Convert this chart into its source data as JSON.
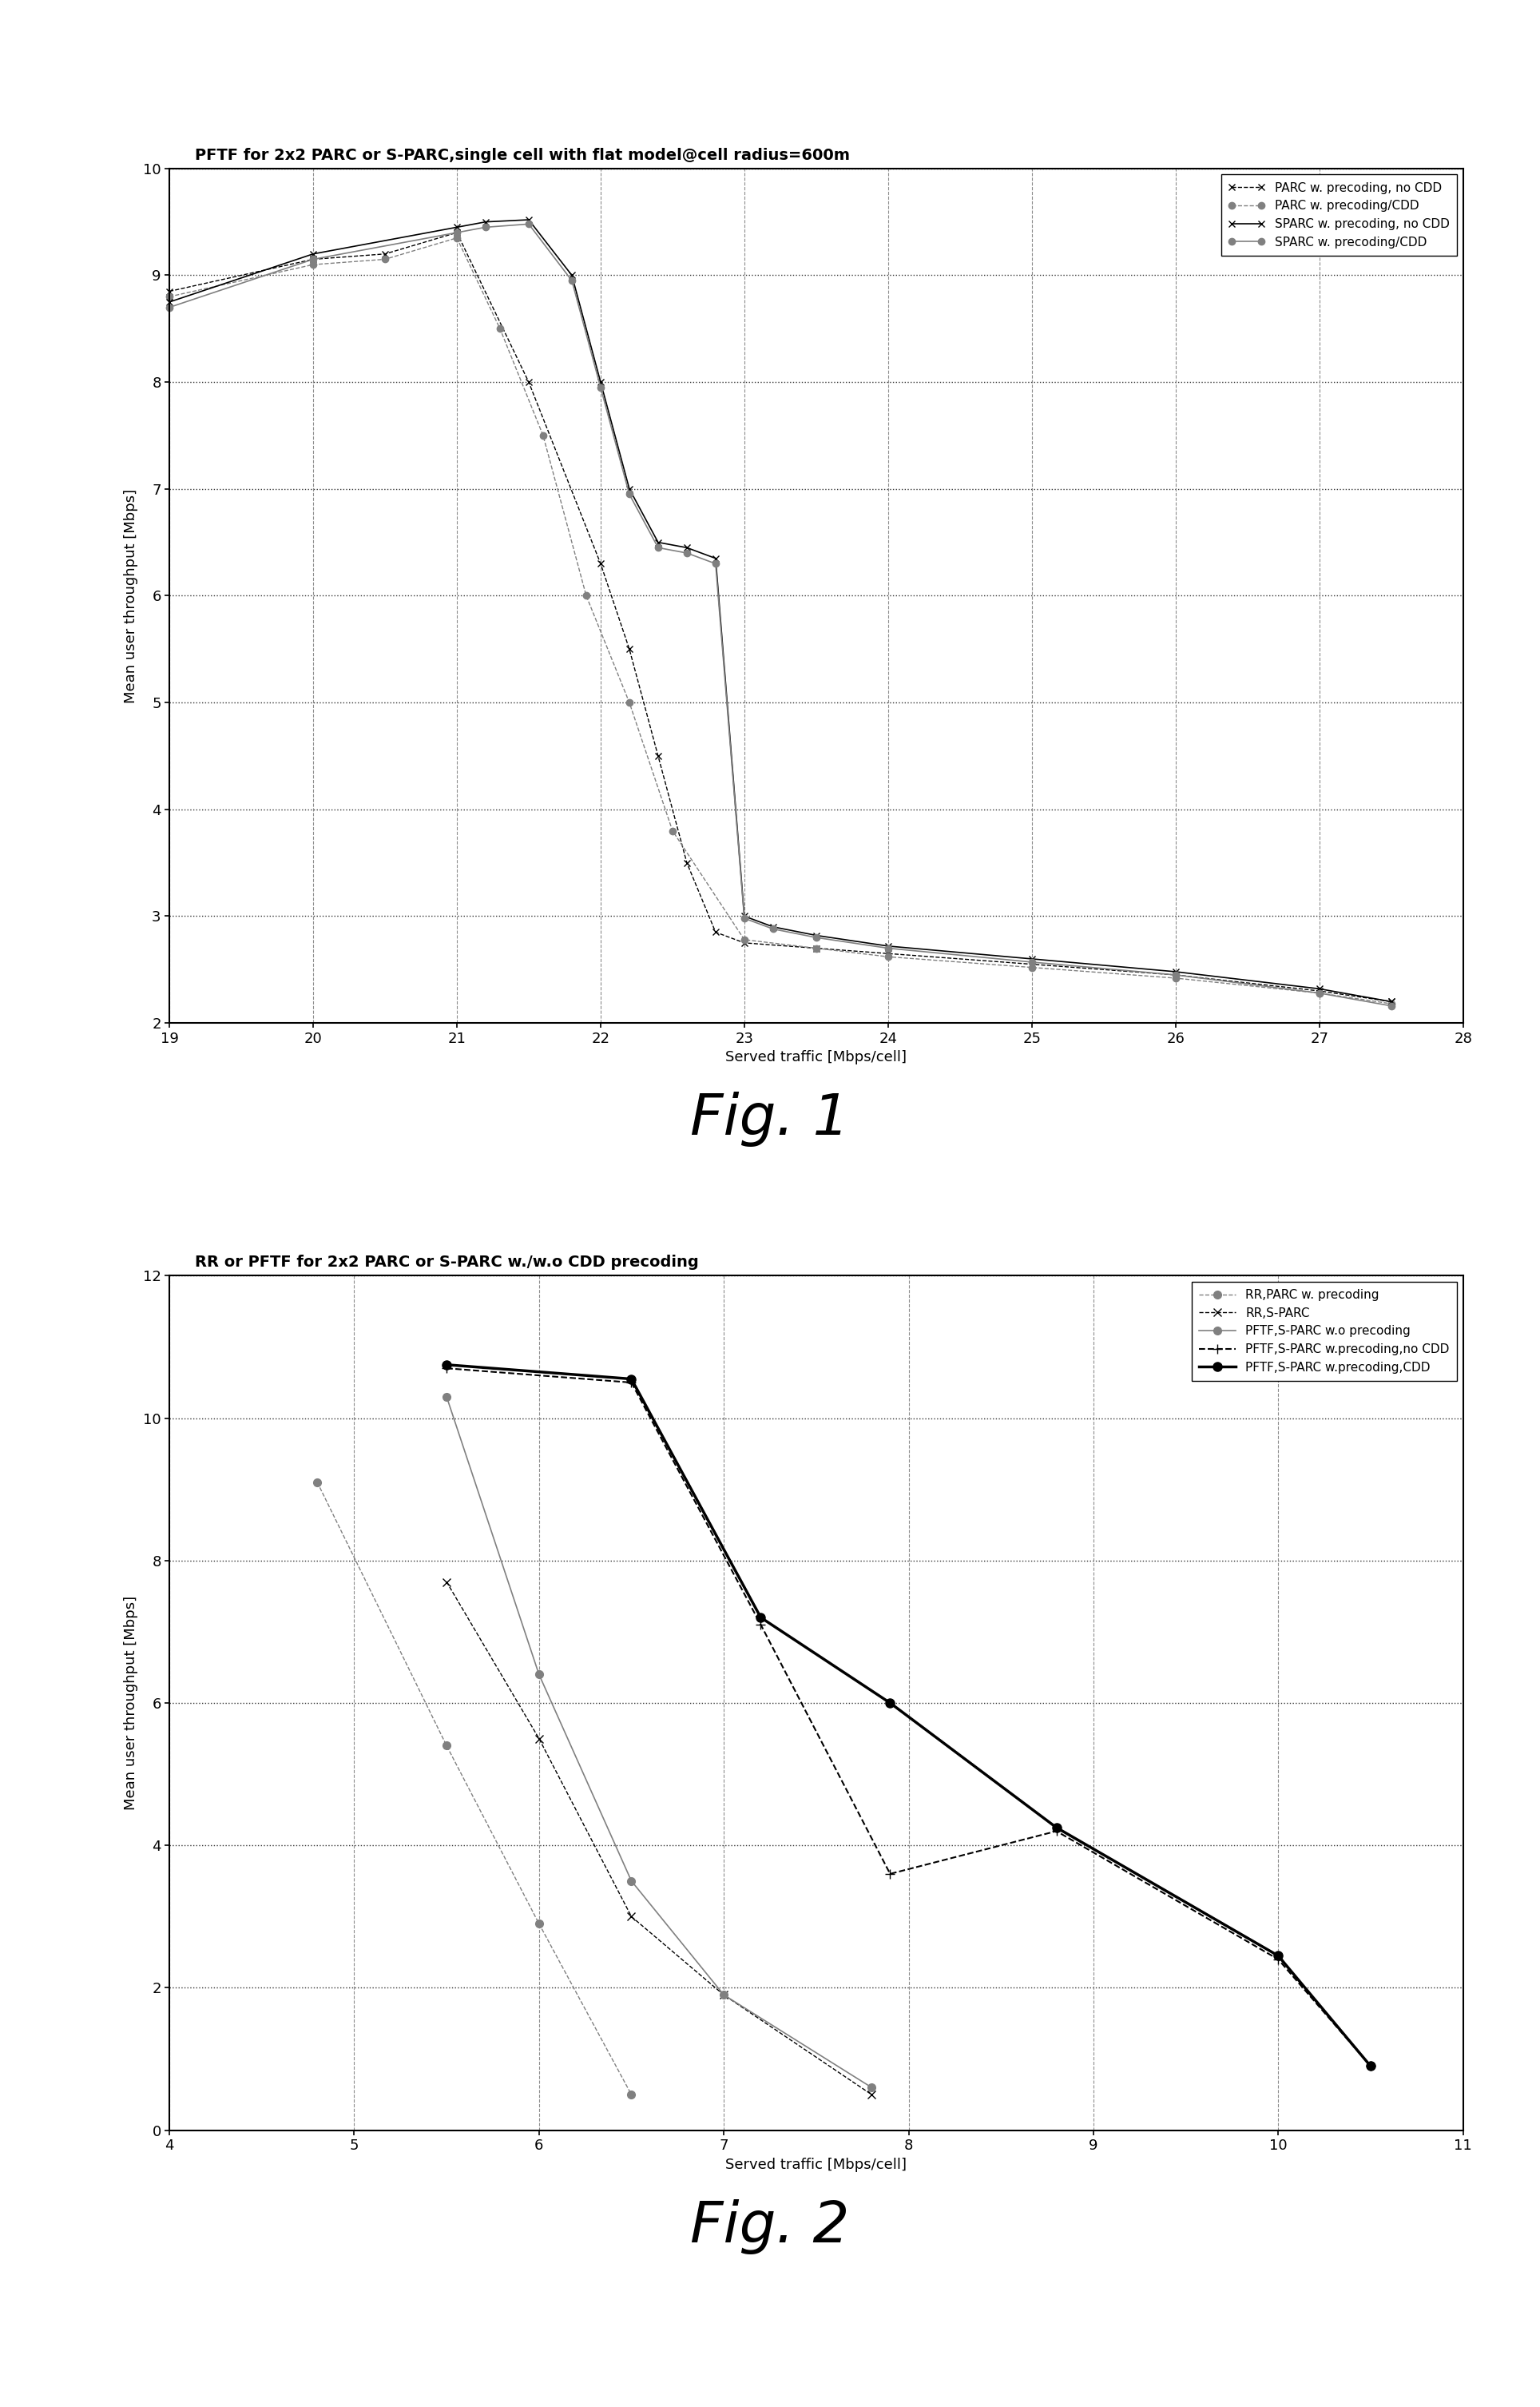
{
  "fig1": {
    "title": "PFTF for 2x2 PARC or S-PARC,single cell with flat model@cell radius=600m",
    "xlabel": "Served traffic [Mbps/cell]",
    "ylabel": "Mean user throughput [Mbps]",
    "xlim": [
      19,
      28
    ],
    "ylim": [
      2,
      10
    ],
    "xticks": [
      19,
      20,
      21,
      22,
      23,
      24,
      25,
      26,
      27,
      28
    ],
    "yticks": [
      2,
      3,
      4,
      5,
      6,
      7,
      8,
      9,
      10
    ],
    "series": [
      {
        "label": "PARC w. precoding, no CDD",
        "x": [
          19.0,
          20.0,
          20.5,
          21.0,
          21.5,
          22.0,
          22.2,
          22.4,
          22.6,
          22.8,
          23.0,
          23.5,
          24.0,
          25.0,
          26.0,
          27.0,
          27.5
        ],
        "y": [
          8.85,
          9.15,
          9.2,
          9.4,
          8.0,
          6.3,
          5.5,
          4.5,
          3.5,
          2.85,
          2.75,
          2.7,
          2.65,
          2.55,
          2.45,
          2.3,
          2.2
        ],
        "color": "black",
        "linestyle": "--",
        "marker": "x",
        "markersize": 6,
        "linewidth": 1.0
      },
      {
        "label": "PARC w. precoding/CDD",
        "x": [
          19.0,
          20.0,
          20.5,
          21.0,
          21.3,
          21.6,
          21.9,
          22.2,
          22.5,
          23.0,
          23.5,
          24.0,
          25.0,
          26.0,
          27.0,
          27.5
        ],
        "y": [
          8.8,
          9.1,
          9.15,
          9.35,
          8.5,
          7.5,
          6.0,
          5.0,
          3.8,
          2.78,
          2.7,
          2.62,
          2.52,
          2.42,
          2.28,
          2.18
        ],
        "color": "gray",
        "linestyle": "--",
        "marker": "o",
        "markersize": 6,
        "linewidth": 1.0
      },
      {
        "label": "SPARC w. precoding, no CDD",
        "x": [
          19.0,
          20.0,
          21.0,
          21.2,
          21.5,
          21.8,
          22.0,
          22.2,
          22.4,
          22.6,
          22.8,
          23.0,
          23.2,
          23.5,
          24.0,
          25.0,
          26.0,
          27.0,
          27.5
        ],
        "y": [
          8.75,
          9.2,
          9.45,
          9.5,
          9.52,
          9.0,
          8.0,
          7.0,
          6.5,
          6.45,
          6.35,
          3.0,
          2.9,
          2.82,
          2.72,
          2.6,
          2.48,
          2.32,
          2.2
        ],
        "color": "black",
        "linestyle": "-",
        "marker": "x",
        "markersize": 6,
        "linewidth": 1.2
      },
      {
        "label": "SPARC w. precoding/CDD",
        "x": [
          19.0,
          20.0,
          21.0,
          21.2,
          21.5,
          21.8,
          22.0,
          22.2,
          22.4,
          22.6,
          22.8,
          23.0,
          23.2,
          23.5,
          24.0,
          25.0,
          26.0,
          27.0,
          27.5
        ],
        "y": [
          8.7,
          9.15,
          9.4,
          9.45,
          9.48,
          8.95,
          7.95,
          6.95,
          6.45,
          6.4,
          6.3,
          2.98,
          2.88,
          2.8,
          2.7,
          2.57,
          2.45,
          2.28,
          2.16
        ],
        "color": "gray",
        "linestyle": "-",
        "marker": "o",
        "markersize": 6,
        "linewidth": 1.2
      }
    ]
  },
  "fig2": {
    "title": "RR or PFTF for 2x2 PARC or S-PARC w./w.o CDD precoding",
    "xlabel": "Served traffic [Mbps/cell]",
    "ylabel": "Mean user throughput [Mbps]",
    "xlim": [
      4,
      11
    ],
    "ylim": [
      0,
      12
    ],
    "xticks": [
      4,
      5,
      6,
      7,
      8,
      9,
      10,
      11
    ],
    "yticks": [
      0,
      2,
      4,
      6,
      8,
      10,
      12
    ],
    "series": [
      {
        "label": "RR,PARC w. precoding",
        "x": [
          4.8,
          5.5,
          6.0,
          6.5
        ],
        "y": [
          9.1,
          5.4,
          2.9,
          0.5
        ],
        "color": "gray",
        "linestyle": "--",
        "marker": "o",
        "markersize": 7,
        "linewidth": 1.0
      },
      {
        "label": "RR,S-PARC",
        "x": [
          5.5,
          6.0,
          6.5,
          7.0,
          7.8
        ],
        "y": [
          7.7,
          5.5,
          3.0,
          1.9,
          0.5
        ],
        "color": "black",
        "linestyle": "--",
        "marker": "x",
        "markersize": 7,
        "linewidth": 1.0
      },
      {
        "label": "PFTF,S-PARC w.o precoding",
        "x": [
          5.5,
          6.0,
          6.5,
          7.0,
          7.8
        ],
        "y": [
          10.3,
          6.4,
          3.5,
          1.9,
          0.6
        ],
        "color": "gray",
        "linestyle": "-",
        "marker": "o",
        "markersize": 7,
        "linewidth": 1.2
      },
      {
        "label": "PFTF,S-PARC w.precoding,no CDD",
        "x": [
          5.5,
          6.5,
          7.2,
          7.9,
          8.8,
          10.0,
          10.5
        ],
        "y": [
          10.7,
          10.5,
          7.1,
          3.6,
          4.2,
          2.4,
          0.9
        ],
        "color": "black",
        "linestyle": "--",
        "marker": "+",
        "markersize": 9,
        "linewidth": 1.5
      },
      {
        "label": "PFTF,S-PARC w.precoding,CDD",
        "x": [
          5.5,
          6.5,
          7.2,
          7.9,
          8.8,
          10.0,
          10.5
        ],
        "y": [
          10.75,
          10.55,
          7.2,
          6.0,
          4.25,
          2.45,
          0.9
        ],
        "color": "black",
        "linestyle": "-",
        "marker": "o",
        "markersize": 8,
        "linewidth": 2.5
      }
    ]
  },
  "fig1_label": "Fig. 1",
  "fig2_label": "Fig. 2",
  "background_color": "white",
  "fig_label_fontsize": 52
}
